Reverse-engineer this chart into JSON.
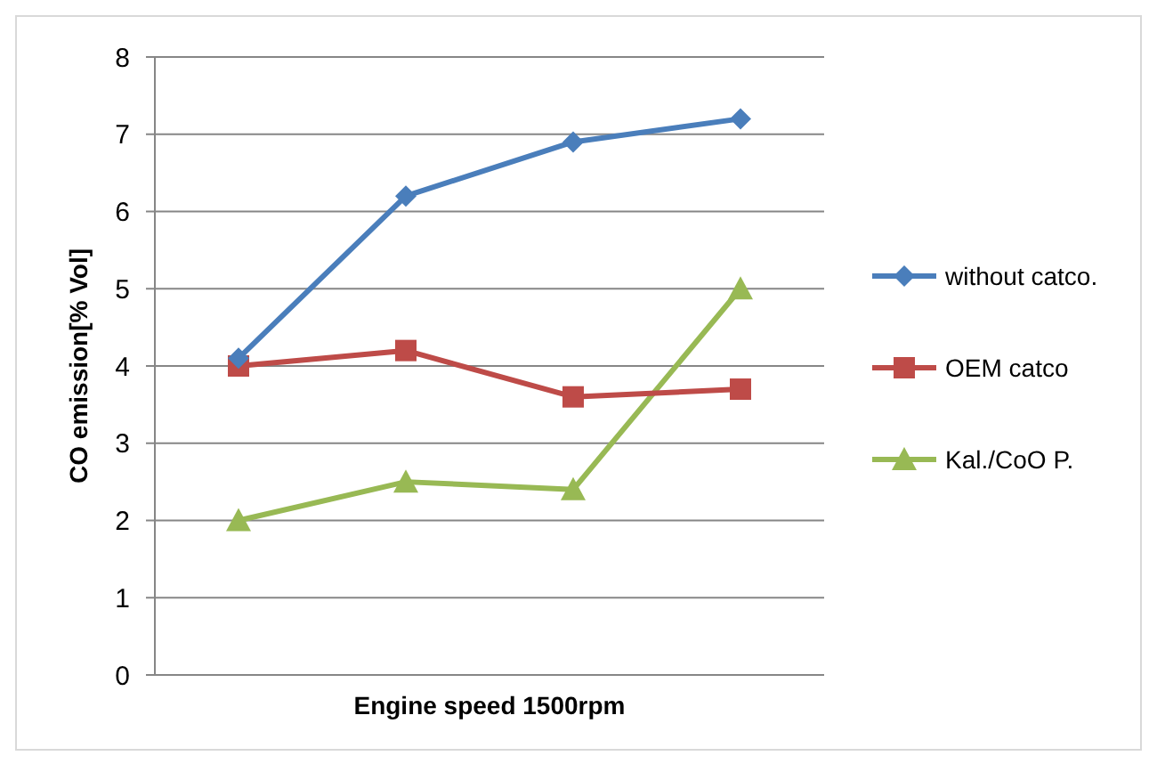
{
  "chart_data": {
    "type": "line",
    "xlabel": "Engine speed 1500rpm",
    "ylabel": "CO emission[% Vol]",
    "categories": [
      null,
      null,
      null,
      null
    ],
    "series": [
      {
        "name": "without catco.",
        "color": "#4a7ebb",
        "marker": "diamond",
        "values": [
          4.1,
          6.2,
          6.9,
          7.2
        ]
      },
      {
        "name": "OEM catco",
        "color": "#be4b48",
        "marker": "square",
        "values": [
          4.0,
          4.2,
          3.6,
          3.7
        ]
      },
      {
        "name": "Kal./CoO P.",
        "color": "#98b954",
        "marker": "triangle",
        "values": [
          2.0,
          2.5,
          2.4,
          5.0
        ]
      }
    ],
    "ylim": [
      0,
      8
    ],
    "yticks": [
      0,
      1,
      2,
      3,
      4,
      5,
      6,
      7,
      8
    ],
    "grid": "y",
    "legend": "right"
  }
}
